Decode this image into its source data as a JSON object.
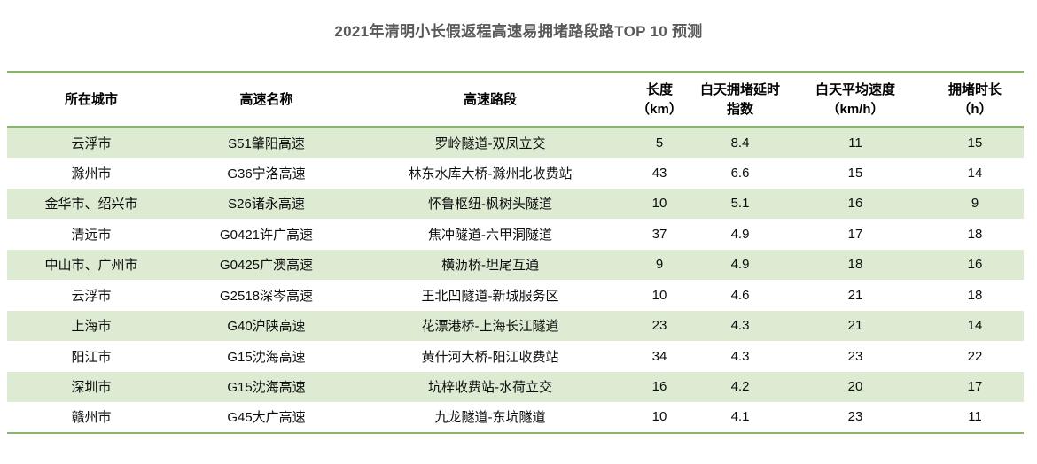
{
  "title": "2021年清明小长假返程高速易拥堵路段路TOP 10 预测",
  "colors": {
    "line_green": "#8bb26e",
    "row_green": "#ddebd2",
    "title_gray": "#595959",
    "text_black": "#0d0d0d"
  },
  "chart_data": {
    "type": "table",
    "title": "2021年清明小长假返程高速易拥堵路段路TOP 10 预测",
    "legend_position": "none",
    "grid": "horizontal-stripes",
    "columns": [
      {
        "label": "所在城市",
        "sub": ""
      },
      {
        "label": "高速名称",
        "sub": ""
      },
      {
        "label": "高速路段",
        "sub": ""
      },
      {
        "label": "长度",
        "sub": "（km）"
      },
      {
        "label": "白天拥堵延时",
        "sub": "指数"
      },
      {
        "label": "白天平均速度",
        "sub": "（km/h）"
      },
      {
        "label": "拥堵时长",
        "sub": "（h）"
      }
    ],
    "rows": [
      [
        "云浮市",
        "S51肇阳高速",
        "罗岭隧道-双凤立交",
        "5",
        "8.4",
        "11",
        "15"
      ],
      [
        "滁州市",
        "G36宁洛高速",
        "林东水库大桥-滁州北收费站",
        "43",
        "6.6",
        "15",
        "14"
      ],
      [
        "金华市、绍兴市",
        "S26诸永高速",
        "怀鲁枢纽-枫树头隧道",
        "10",
        "5.1",
        "16",
        "9"
      ],
      [
        "清远市",
        "G0421许广高速",
        "焦冲隧道-六甲洞隧道",
        "37",
        "4.9",
        "17",
        "18"
      ],
      [
        "中山市、广州市",
        "G0425广澳高速",
        "横沥桥-坦尾互通",
        "9",
        "4.9",
        "18",
        "16"
      ],
      [
        "云浮市",
        "G2518深岑高速",
        "王北凹隧道-新城服务区",
        "10",
        "4.6",
        "21",
        "18"
      ],
      [
        "上海市",
        "G40沪陕高速",
        "花漂港桥-上海长江隧道",
        "23",
        "4.3",
        "21",
        "14"
      ],
      [
        "阳江市",
        "G15沈海高速",
        "黄什河大桥-阳江收费站",
        "34",
        "4.3",
        "23",
        "22"
      ],
      [
        "深圳市",
        "G15沈海高速",
        "坑梓收费站-水荷立交",
        "16",
        "4.2",
        "20",
        "17"
      ],
      [
        "赣州市",
        "G45大广高速",
        "九龙隧道-东坑隧道",
        "10",
        "4.1",
        "23",
        "11"
      ]
    ]
  }
}
